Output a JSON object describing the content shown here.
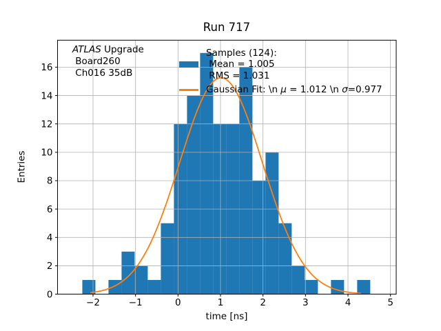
{
  "chart_data": {
    "type": "bar",
    "title": "Run 717",
    "xlabel": "time [ns]",
    "ylabel": "Entries",
    "samples_total": 124,
    "stats": {
      "mean": 1.005,
      "rms": 1.031
    },
    "bin_edges": [
      -2.252,
      -1.944,
      -1.636,
      -1.328,
      -1.02,
      -0.712,
      -0.404,
      -0.096,
      0.212,
      0.52,
      0.828,
      1.136,
      1.444,
      1.752,
      2.06,
      2.368,
      2.676,
      2.984,
      3.292,
      3.6,
      3.908,
      4.216,
      4.524
    ],
    "counts": [
      1,
      0,
      1,
      3,
      2,
      1,
      5,
      12,
      14,
      17,
      12,
      12,
      16,
      8,
      10,
      5,
      2,
      1,
      0,
      1,
      0,
      1
    ],
    "gaussian": {
      "amplitude": 15.25,
      "mu": 1.012,
      "sigma": 0.977,
      "x_start": -2.05,
      "x_end": 4.3,
      "color": "#ff7f0e"
    },
    "bar_color": "#1f77b4",
    "grid": true,
    "grid_color": "#b0b0b0",
    "axis_color": "#000000",
    "xlim": [
      -2.835,
      5.135
    ],
    "ylim": [
      0,
      17.9
    ],
    "xticks": [
      -2,
      -1,
      0,
      1,
      2,
      3,
      4,
      5
    ],
    "xtick_labels": [
      "−2",
      "−1",
      "0",
      "1",
      "2",
      "3",
      "4",
      "5"
    ],
    "yticks": [
      0,
      2,
      4,
      6,
      8,
      10,
      12,
      14,
      16
    ],
    "ytick_labels": [
      "0",
      "2",
      "4",
      "6",
      "8",
      "10",
      "12",
      "14",
      "16"
    ],
    "legend": {
      "position": "upper center",
      "frame": false,
      "samples_line1": "Samples (124):",
      "samples_line2": " Mean = 1.005",
      "samples_line3": " RMS = 1.031",
      "gaussian_seg1": "Gaussian Fit: \\n ",
      "gaussian_mu_symbol": "μ",
      "gaussian_seg2": " = 1.012 \\n ",
      "gaussian_sigma_symbol": "σ",
      "gaussian_seg3": "=0.977"
    },
    "annotation": {
      "line1_italic": "ATLAS",
      "line1_rest": " Upgrade",
      "line2": " Board260",
      "line3": " Ch016 35dB"
    }
  }
}
